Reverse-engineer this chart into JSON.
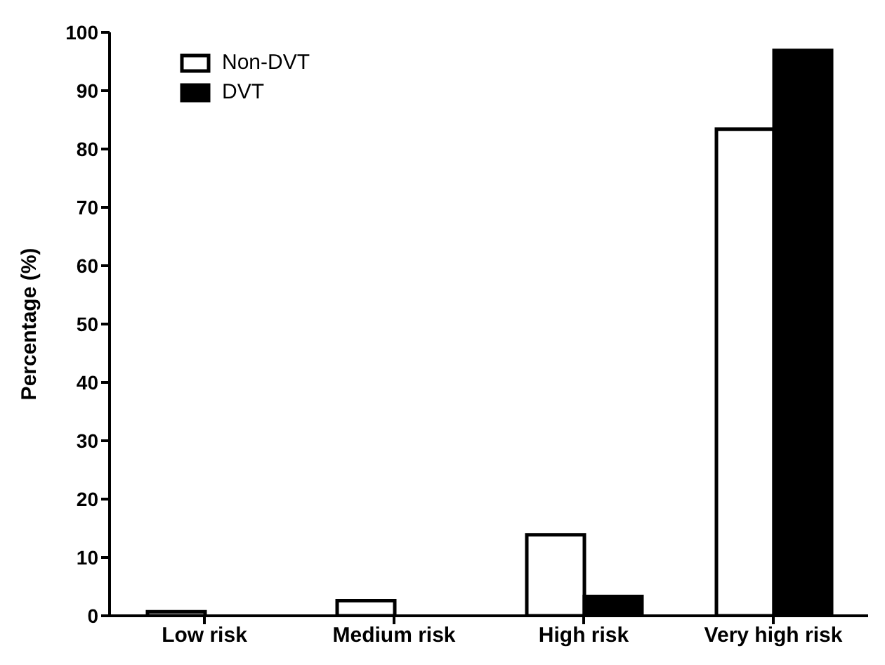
{
  "chart_data": {
    "type": "bar",
    "ylabel": "Percentage (%)",
    "categories": [
      "Low risk",
      "Medium risk",
      "High risk",
      "Very high risk"
    ],
    "series": [
      {
        "name": "Non-DVT",
        "color": "#ffffff",
        "values": [
          0.7,
          2.6,
          13.9,
          83.4
        ]
      },
      {
        "name": "DVT",
        "color": "#000000",
        "values": [
          0,
          0,
          3.3,
          96.9
        ]
      }
    ],
    "ylim": [
      0,
      100
    ],
    "yticks": [
      0,
      10,
      20,
      30,
      40,
      50,
      60,
      70,
      80,
      90,
      100
    ],
    "grid": false,
    "legend": "top left"
  }
}
